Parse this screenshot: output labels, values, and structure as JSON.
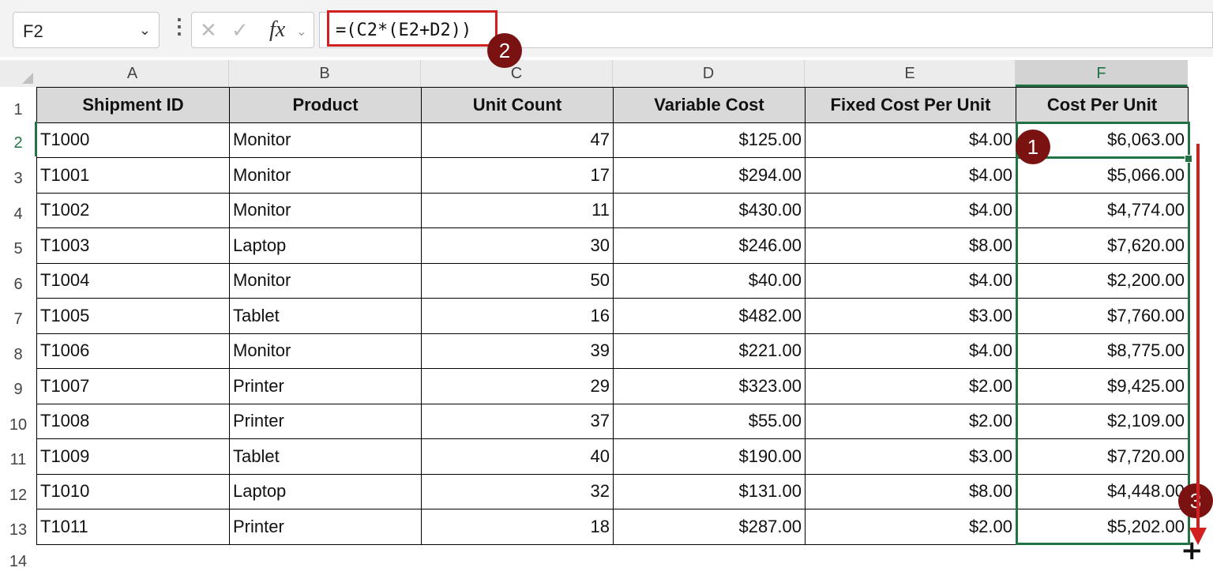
{
  "formula_bar": {
    "name_box": "F2",
    "formula": "=(C2*(E2+D2))",
    "fx_label": "fx"
  },
  "icons": {
    "name_box_dropdown": "chevron-down-icon",
    "cancel": "close-icon",
    "enter": "check-icon",
    "insert_function": "fx-icon",
    "options": "vertical-dots-icon"
  },
  "columns": [
    "A",
    "B",
    "C",
    "D",
    "E",
    "F"
  ],
  "rows": [
    "1",
    "2",
    "3",
    "4",
    "5",
    "6",
    "7",
    "8",
    "9",
    "10",
    "11",
    "12",
    "13",
    "14"
  ],
  "table": {
    "headers": [
      "Shipment ID",
      "Product",
      "Unit Count",
      "Variable Cost",
      "Fixed Cost Per Unit",
      "Cost Per Unit"
    ],
    "rows": [
      [
        "T1000",
        "Monitor",
        "47",
        "$125.00",
        "$4.00",
        "$6,063.00"
      ],
      [
        "T1001",
        "Monitor",
        "17",
        "$294.00",
        "$4.00",
        "$5,066.00"
      ],
      [
        "T1002",
        "Monitor",
        "11",
        "$430.00",
        "$4.00",
        "$4,774.00"
      ],
      [
        "T1003",
        "Laptop",
        "30",
        "$246.00",
        "$8.00",
        "$7,620.00"
      ],
      [
        "T1004",
        "Monitor",
        "50",
        "$40.00",
        "$4.00",
        "$2,200.00"
      ],
      [
        "T1005",
        "Tablet",
        "16",
        "$482.00",
        "$3.00",
        "$7,760.00"
      ],
      [
        "T1006",
        "Monitor",
        "39",
        "$221.00",
        "$4.00",
        "$8,775.00"
      ],
      [
        "T1007",
        "Printer",
        "29",
        "$323.00",
        "$2.00",
        "$9,425.00"
      ],
      [
        "T1008",
        "Printer",
        "37",
        "$55.00",
        "$2.00",
        "$2,109.00"
      ],
      [
        "T1009",
        "Tablet",
        "40",
        "$190.00",
        "$3.00",
        "$7,720.00"
      ],
      [
        "T1010",
        "Laptop",
        "32",
        "$131.00",
        "$8.00",
        "$4,448.00"
      ],
      [
        "T1011",
        "Printer",
        "18",
        "$287.00",
        "$2.00",
        "$5,202.00"
      ]
    ]
  },
  "annotations": {
    "badge_1": "1",
    "badge_2": "2",
    "badge_3": "3"
  },
  "colors": {
    "selection": "#217346",
    "highlight": "#d02020",
    "badge": "#7a1212",
    "header_fill": "#d9d9d9"
  }
}
